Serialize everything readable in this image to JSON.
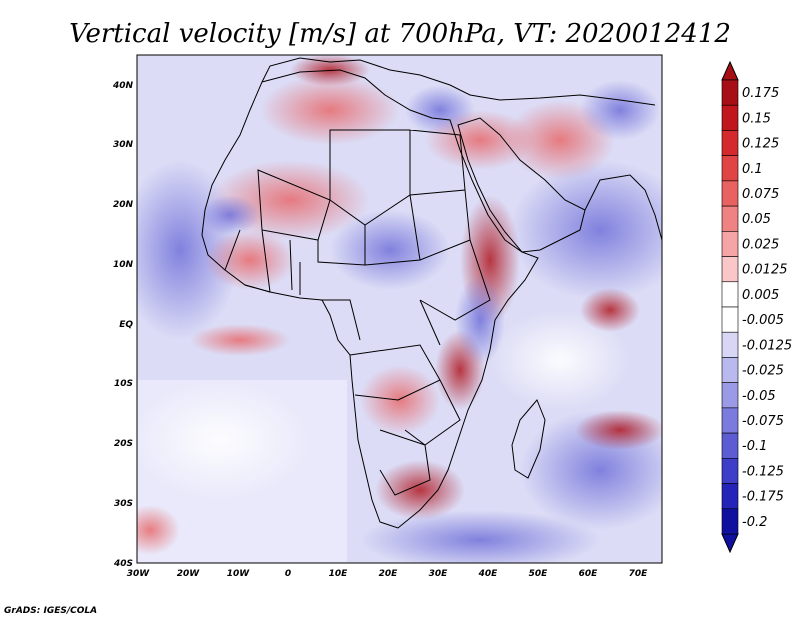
{
  "title": "Vertical velocity [m/s] at 700hPa, VT: 2020012412",
  "credit": "GrADS: IGES/COLA",
  "axes": {
    "lat_labels": [
      "40N",
      "30N",
      "20N",
      "10N",
      "EQ",
      "10S",
      "20S",
      "30S",
      "40S"
    ],
    "lon_labels": [
      "30W",
      "20W",
      "10W",
      "0",
      "10E",
      "20E",
      "30E",
      "40E",
      "50E",
      "60E",
      "70E"
    ]
  },
  "colorbar": {
    "labels": [
      "0.175",
      "0.15",
      "0.125",
      "0.1",
      "0.075",
      "0.05",
      "0.025",
      "0.0125",
      "0.005",
      "-0.005",
      "-0.0125",
      "-0.025",
      "-0.05",
      "-0.075",
      "-0.1",
      "-0.125",
      "-0.175",
      "-0.2"
    ],
    "colors": [
      "#a50f15",
      "#c0161d",
      "#d42a2e",
      "#e04444",
      "#e86262",
      "#ef8282",
      "#f5a5a5",
      "#f9c7c7",
      "#ffffff",
      "#ffffff",
      "#d7d7f5",
      "#b9b9ee",
      "#9a9ae6",
      "#7b7bdd",
      "#5c5cd3",
      "#3e3ec8",
      "#2424b8",
      "#1010a0"
    ],
    "top_arrow_color": "#a50f15",
    "bottom_arrow_color": "#1010a0"
  },
  "colors": {
    "ocean_base": "#dcdcf6",
    "upward": "#e86262",
    "downward": "#7b7bdd",
    "border": "#000000"
  }
}
